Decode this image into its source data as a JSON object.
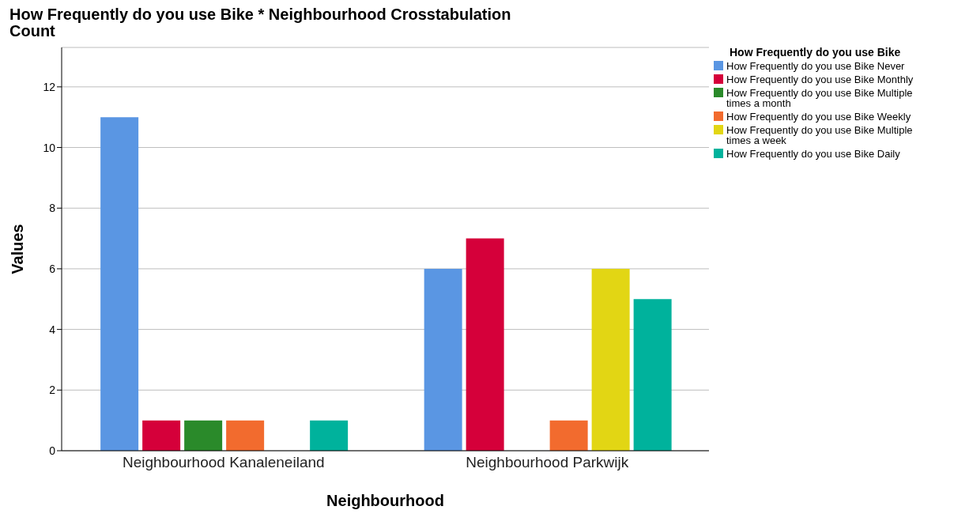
{
  "chart_data": {
    "type": "bar",
    "title": "How Frequently do you use Bike * Neighbourhood Crosstabulation",
    "subtitle": "Count",
    "xlabel": "Neighbourhood",
    "ylabel": "Values",
    "legend_title": "How Frequently do you use Bike",
    "categories": [
      "Neighbourhood Kanaleneiland",
      "Neighbourhood Parkwijk"
    ],
    "series": [
      {
        "name": "How Frequently do you use Bike Never",
        "color": "#5a96e3",
        "values": [
          11,
          6
        ]
      },
      {
        "name": "How Frequently do you use Bike Monthly",
        "color": "#d5003a",
        "values": [
          1,
          7
        ]
      },
      {
        "name": "How Frequently do you use Bike Multiple times a month",
        "color": "#2a8a2a",
        "values": [
          1,
          0
        ]
      },
      {
        "name": "How Frequently do you use Bike Weekly",
        "color": "#f26b2e",
        "values": [
          1,
          1
        ]
      },
      {
        "name": "How Frequently do you use Bike Multiple times a week",
        "color": "#e2d614",
        "values": [
          0,
          6
        ]
      },
      {
        "name": "How Frequently do you use Bike Daily",
        "color": "#00b29c",
        "values": [
          1,
          5
        ]
      }
    ],
    "ylim": [
      0,
      13.3
    ],
    "yticks": [
      0,
      2,
      4,
      6,
      8,
      10,
      12
    ],
    "grid": "y",
    "legend": "top right"
  }
}
